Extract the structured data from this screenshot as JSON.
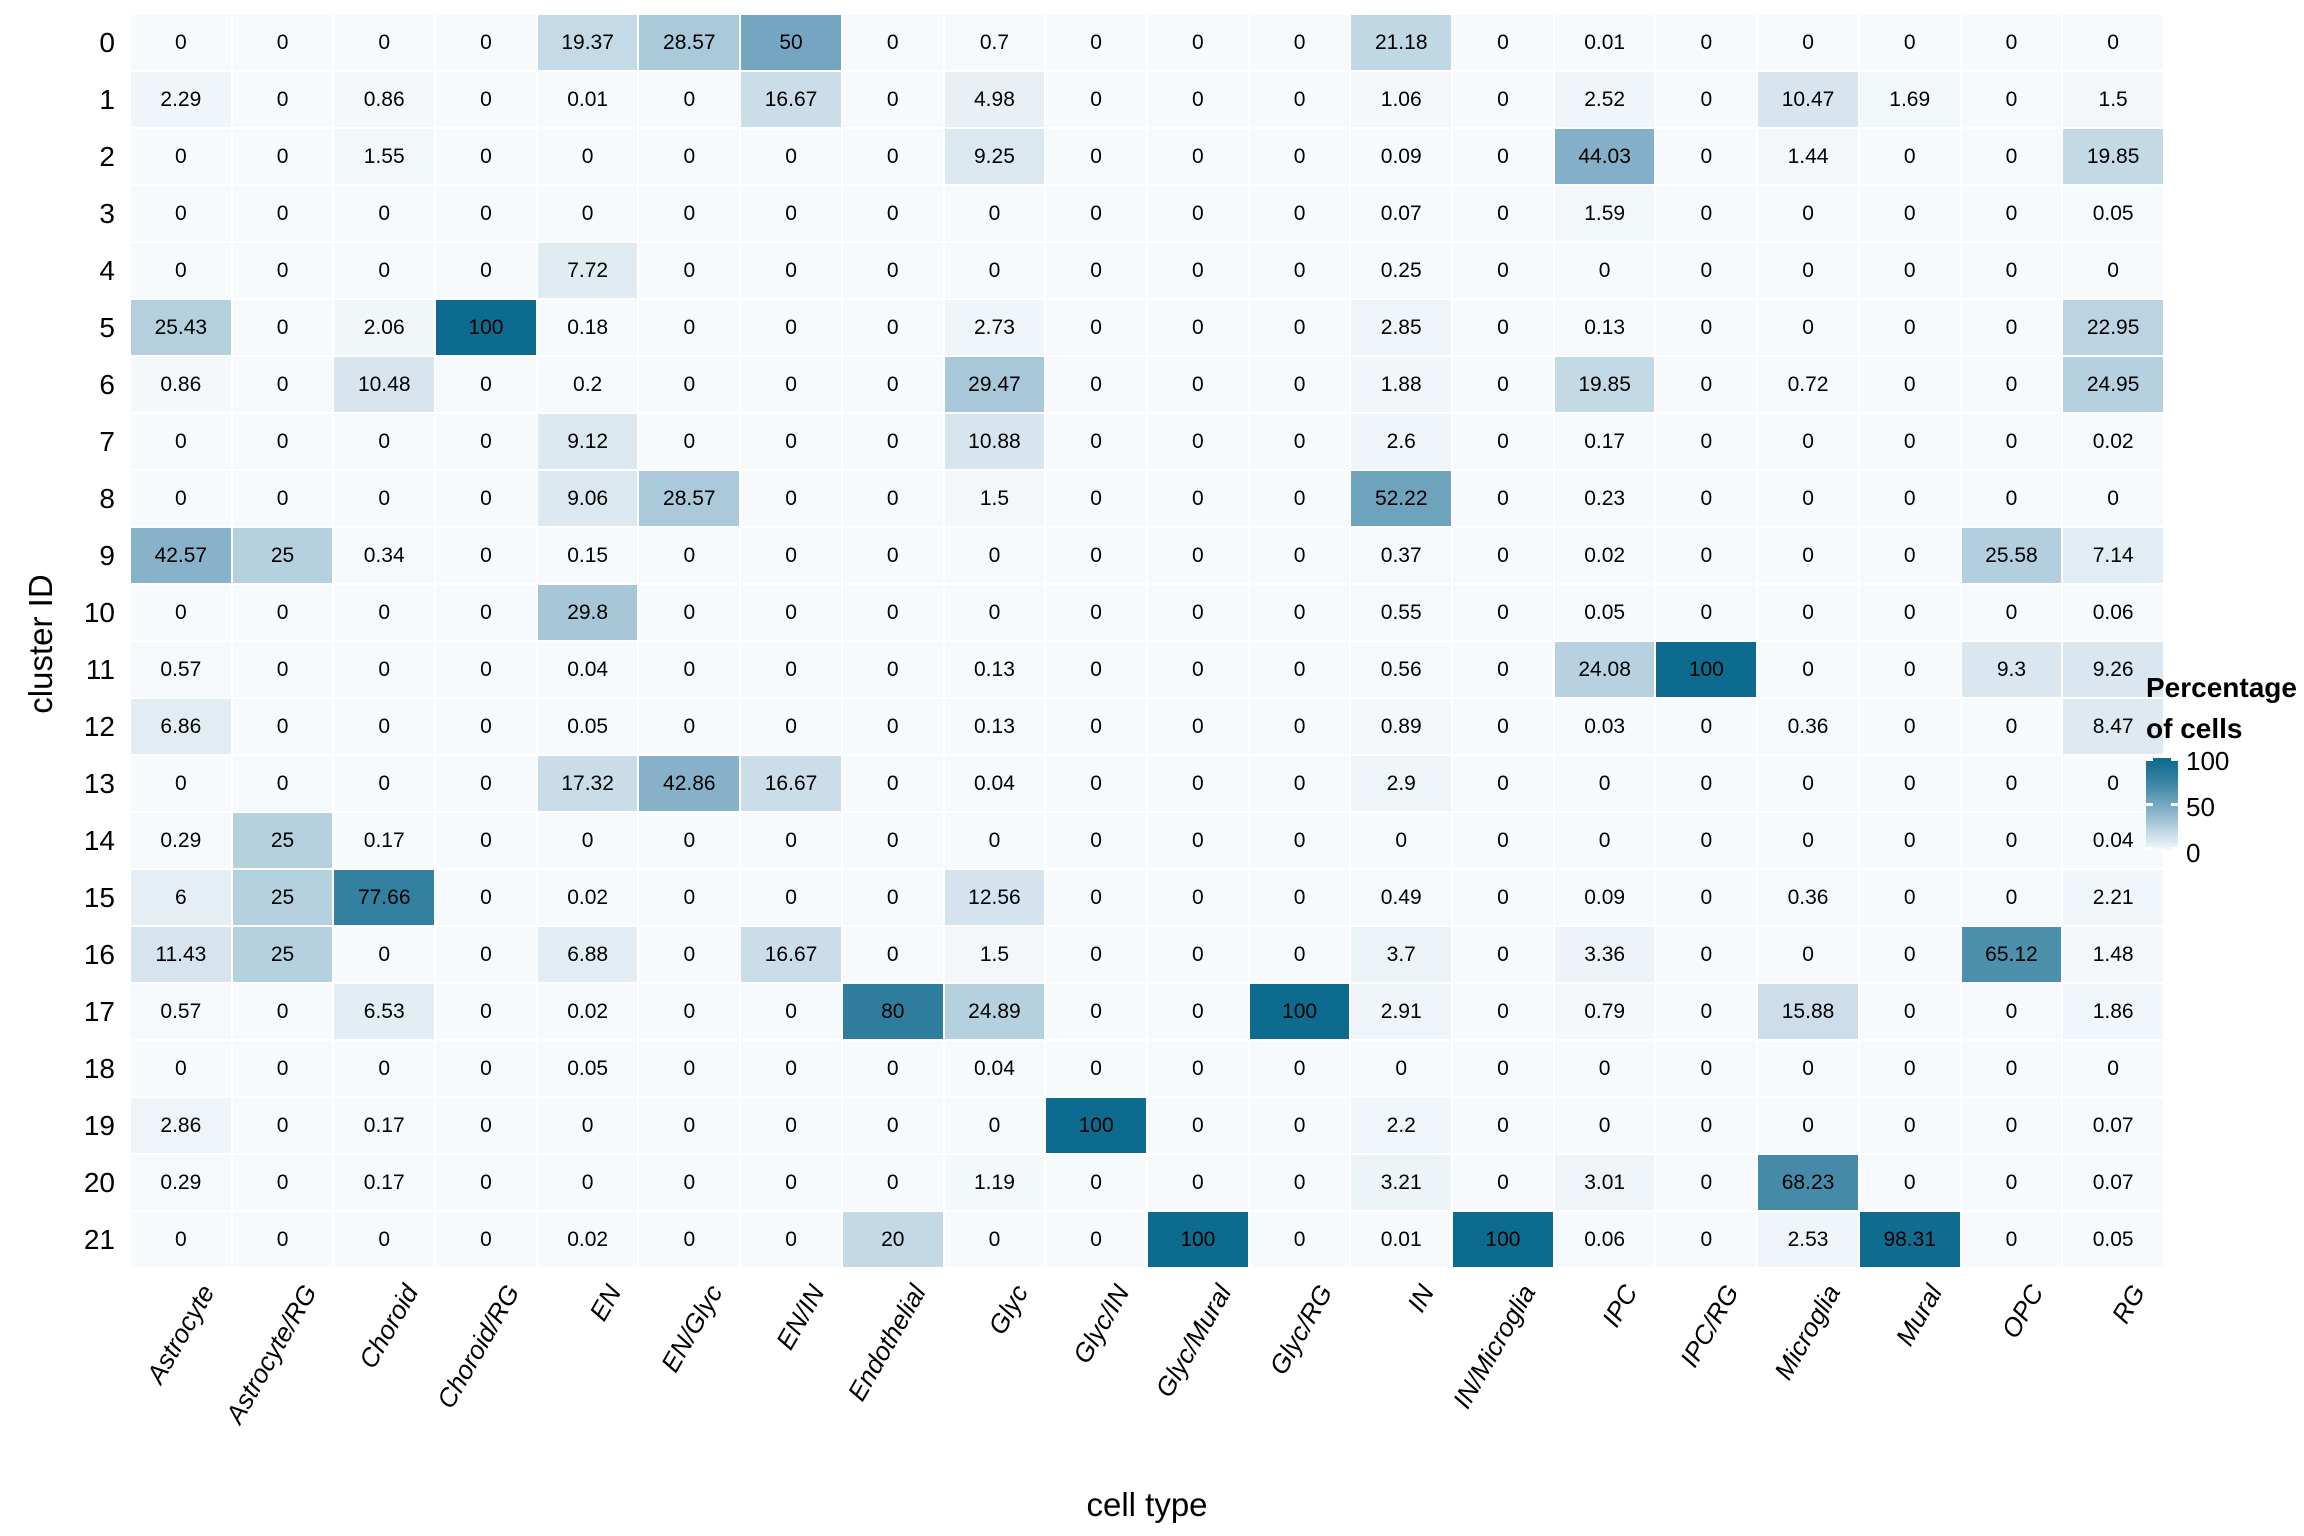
{
  "chart_data": {
    "type": "heatmap",
    "xlabel": "cell type",
    "ylabel": "cluster ID",
    "columns": [
      "Astrocyte",
      "Astrocyte/RG",
      "Choroid",
      "Choroid/RG",
      "EN",
      "EN/Glyc",
      "EN/IN",
      "Endothelial",
      "Glyc",
      "Glyc/IN",
      "Glyc/Mural",
      "Glyc/RG",
      "IN",
      "IN/Microglia",
      "IPC",
      "IPC/RG",
      "Microglia",
      "Mural",
      "OPC",
      "RG"
    ],
    "rows": [
      "0",
      "1",
      "2",
      "3",
      "4",
      "5",
      "6",
      "7",
      "8",
      "9",
      "10",
      "11",
      "12",
      "13",
      "14",
      "15",
      "16",
      "17",
      "18",
      "19",
      "20",
      "21"
    ],
    "values": [
      [
        0,
        0,
        0,
        0,
        19.37,
        28.57,
        50,
        0,
        0.7,
        0,
        0,
        0,
        21.18,
        0,
        0.01,
        0,
        0,
        0,
        0,
        0
      ],
      [
        2.29,
        0,
        0.86,
        0,
        0.01,
        0,
        16.67,
        0,
        4.98,
        0,
        0,
        0,
        1.06,
        0,
        2.52,
        0,
        10.47,
        1.69,
        0,
        1.5
      ],
      [
        0,
        0,
        1.55,
        0,
        0,
        0,
        0,
        0,
        9.25,
        0,
        0,
        0,
        0.09,
        0,
        44.03,
        0,
        1.44,
        0,
        0,
        19.85
      ],
      [
        0,
        0,
        0,
        0,
        0,
        0,
        0,
        0,
        0,
        0,
        0,
        0,
        0.07,
        0,
        1.59,
        0,
        0,
        0,
        0,
        0.05
      ],
      [
        0,
        0,
        0,
        0,
        7.72,
        0,
        0,
        0,
        0,
        0,
        0,
        0,
        0.25,
        0,
        0,
        0,
        0,
        0,
        0,
        0
      ],
      [
        25.43,
        0,
        2.06,
        100,
        0.18,
        0,
        0,
        0,
        2.73,
        0,
        0,
        0,
        2.85,
        0,
        0.13,
        0,
        0,
        0,
        0,
        22.95
      ],
      [
        0.86,
        0,
        10.48,
        0,
        0.2,
        0,
        0,
        0,
        29.47,
        0,
        0,
        0,
        1.88,
        0,
        19.85,
        0,
        0.72,
        0,
        0,
        24.95
      ],
      [
        0,
        0,
        0,
        0,
        9.12,
        0,
        0,
        0,
        10.88,
        0,
        0,
        0,
        2.6,
        0,
        0.17,
        0,
        0,
        0,
        0,
        0.02
      ],
      [
        0,
        0,
        0,
        0,
        9.06,
        28.57,
        0,
        0,
        1.5,
        0,
        0,
        0,
        52.22,
        0,
        0.23,
        0,
        0,
        0,
        0,
        0
      ],
      [
        42.57,
        25,
        0.34,
        0,
        0.15,
        0,
        0,
        0,
        0,
        0,
        0,
        0,
        0.37,
        0,
        0.02,
        0,
        0,
        0,
        25.58,
        7.14
      ],
      [
        0,
        0,
        0,
        0,
        29.8,
        0,
        0,
        0,
        0,
        0,
        0,
        0,
        0.55,
        0,
        0.05,
        0,
        0,
        0,
        0,
        0.06
      ],
      [
        0.57,
        0,
        0,
        0,
        0.04,
        0,
        0,
        0,
        0.13,
        0,
        0,
        0,
        0.56,
        0,
        24.08,
        100,
        0,
        0,
        9.3,
        9.26
      ],
      [
        6.86,
        0,
        0,
        0,
        0.05,
        0,
        0,
        0,
        0.13,
        0,
        0,
        0,
        0.89,
        0,
        0.03,
        0,
        0.36,
        0,
        0,
        8.47
      ],
      [
        0,
        0,
        0,
        0,
        17.32,
        42.86,
        16.67,
        0,
        0.04,
        0,
        0,
        0,
        2.9,
        0,
        0,
        0,
        0,
        0,
        0,
        0
      ],
      [
        0.29,
        25,
        0.17,
        0,
        0,
        0,
        0,
        0,
        0,
        0,
        0,
        0,
        0,
        0,
        0,
        0,
        0,
        0,
        0,
        0.04
      ],
      [
        6,
        25,
        77.66,
        0,
        0.02,
        0,
        0,
        0,
        12.56,
        0,
        0,
        0,
        0.49,
        0,
        0.09,
        0,
        0.36,
        0,
        0,
        2.21
      ],
      [
        11.43,
        25,
        0,
        0,
        6.88,
        0,
        16.67,
        0,
        1.5,
        0,
        0,
        0,
        3.7,
        0,
        3.36,
        0,
        0,
        0,
        65.12,
        1.48
      ],
      [
        0.57,
        0,
        6.53,
        0,
        0.02,
        0,
        0,
        80,
        24.89,
        0,
        0,
        100,
        2.91,
        0,
        0.79,
        0,
        15.88,
        0,
        0,
        1.86
      ],
      [
        0,
        0,
        0,
        0,
        0.05,
        0,
        0,
        0,
        0.04,
        0,
        0,
        0,
        0,
        0,
        0,
        0,
        0,
        0,
        0,
        0
      ],
      [
        2.86,
        0,
        0.17,
        0,
        0,
        0,
        0,
        0,
        0,
        100,
        0,
        0,
        2.2,
        0,
        0,
        0,
        0,
        0,
        0,
        0.07
      ],
      [
        0.29,
        0,
        0.17,
        0,
        0,
        0,
        0,
        0,
        1.19,
        0,
        0,
        0,
        3.21,
        0,
        3.01,
        0,
        68.23,
        0,
        0,
        0.07
      ],
      [
        0,
        0,
        0,
        0,
        0.02,
        0,
        0,
        20,
        0,
        0,
        100,
        0,
        0.01,
        100,
        0.06,
        0,
        2.53,
        98.31,
        0,
        0.05
      ]
    ],
    "legend": {
      "title_lines": [
        "Percentage",
        "of cells"
      ],
      "ticks": [
        "100",
        "50",
        "0"
      ],
      "range": [
        0,
        100
      ],
      "position": "right"
    },
    "grid": "off",
    "color_scale": {
      "low": "#f7fafc",
      "high": "#0c6b8e",
      "stops": [
        {
          "v": 0,
          "rgb": [
            247,
            250,
            252
          ]
        },
        {
          "v": 10,
          "rgb": [
            217,
            230,
            239
          ]
        },
        {
          "v": 20,
          "rgb": [
            196,
            217,
            230
          ]
        },
        {
          "v": 30,
          "rgb": [
            166,
            198,
            216
          ]
        },
        {
          "v": 40,
          "rgb": [
            141,
            182,
            204
          ]
        },
        {
          "v": 50,
          "rgb": [
            116,
            166,
            193
          ]
        },
        {
          "v": 60,
          "rgb": [
            88,
            151,
            178
          ]
        },
        {
          "v": 70,
          "rgb": [
            65,
            137,
            167
          ]
        },
        {
          "v": 80,
          "rgb": [
            47,
            125,
            158
          ]
        },
        {
          "v": 90,
          "rgb": [
            28,
            115,
            149
          ]
        },
        {
          "v": 100,
          "rgb": [
            12,
            107,
            142
          ]
        }
      ]
    },
    "text_color": "#000000",
    "tile_gap_color": "#ffffff"
  }
}
